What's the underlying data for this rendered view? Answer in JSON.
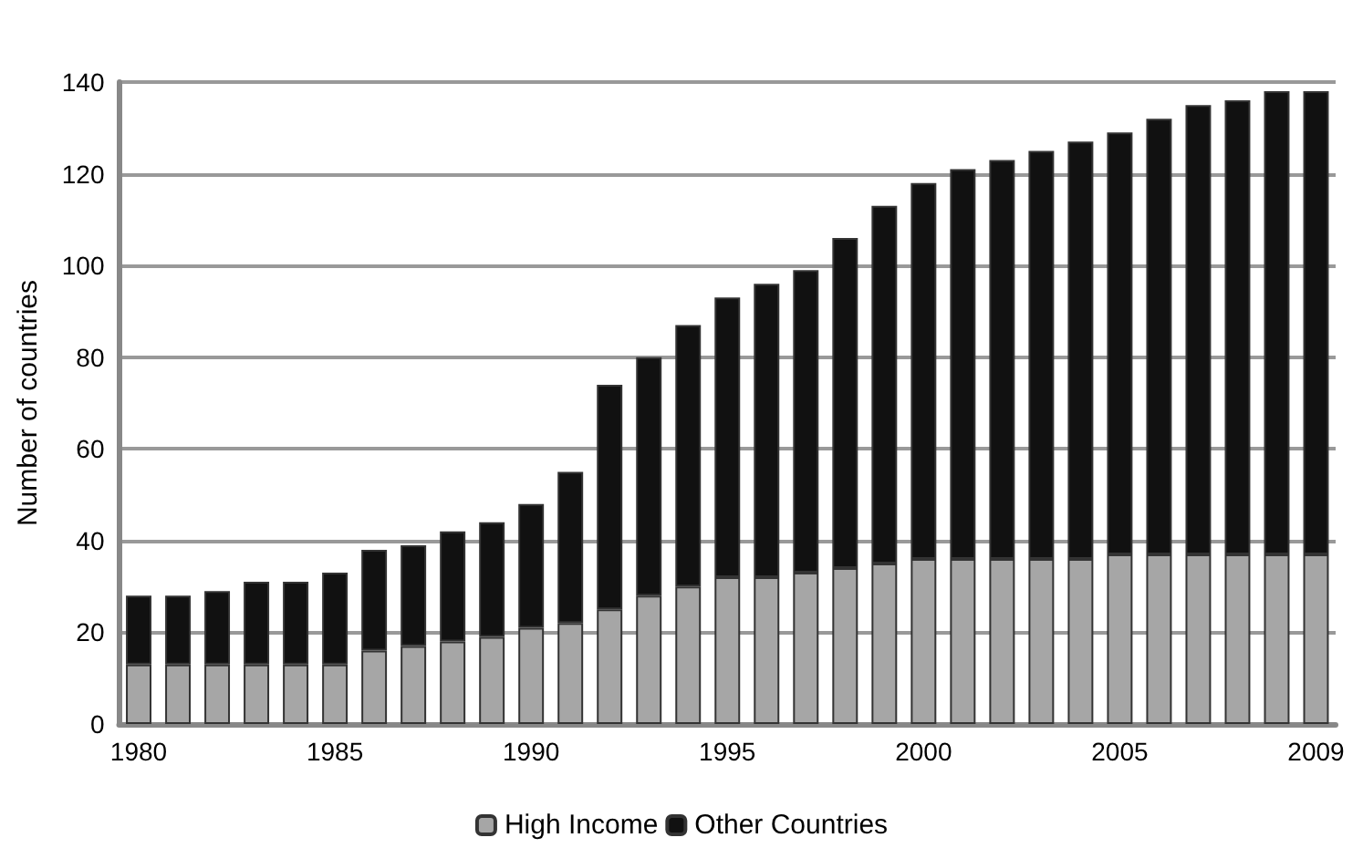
{
  "chart_data": {
    "type": "bar",
    "stacked": true,
    "ylabel": "Number of countries",
    "categories": [
      "1980",
      null,
      null,
      null,
      null,
      "1985",
      null,
      null,
      null,
      null,
      "1990",
      null,
      null,
      null,
      null,
      "1995",
      null,
      null,
      null,
      null,
      "2000",
      null,
      null,
      null,
      null,
      "2005",
      null,
      null,
      null,
      null,
      "2009"
    ],
    "series": [
      {
        "name": "High Income",
        "color": "#a6a6a6",
        "values": [
          13,
          13,
          13,
          13,
          13,
          13,
          16,
          17,
          18,
          19,
          21,
          22,
          25,
          28,
          30,
          32,
          32,
          33,
          34,
          35,
          36,
          36,
          36,
          36,
          36,
          37,
          37,
          37,
          37,
          37,
          37
        ]
      },
      {
        "name": "Other Countries",
        "color": "#111111",
        "values": [
          15,
          15,
          16,
          18,
          18,
          20,
          22,
          22,
          24,
          25,
          27,
          33,
          49,
          52,
          57,
          61,
          64,
          66,
          72,
          78,
          82,
          85,
          87,
          89,
          91,
          92,
          95,
          98,
          99,
          101,
          101
        ]
      }
    ],
    "ylim": [
      0,
      140
    ],
    "yticks": [
      0,
      20,
      40,
      60,
      80,
      100,
      120,
      140
    ],
    "grid": "y",
    "legend": "bottom"
  }
}
